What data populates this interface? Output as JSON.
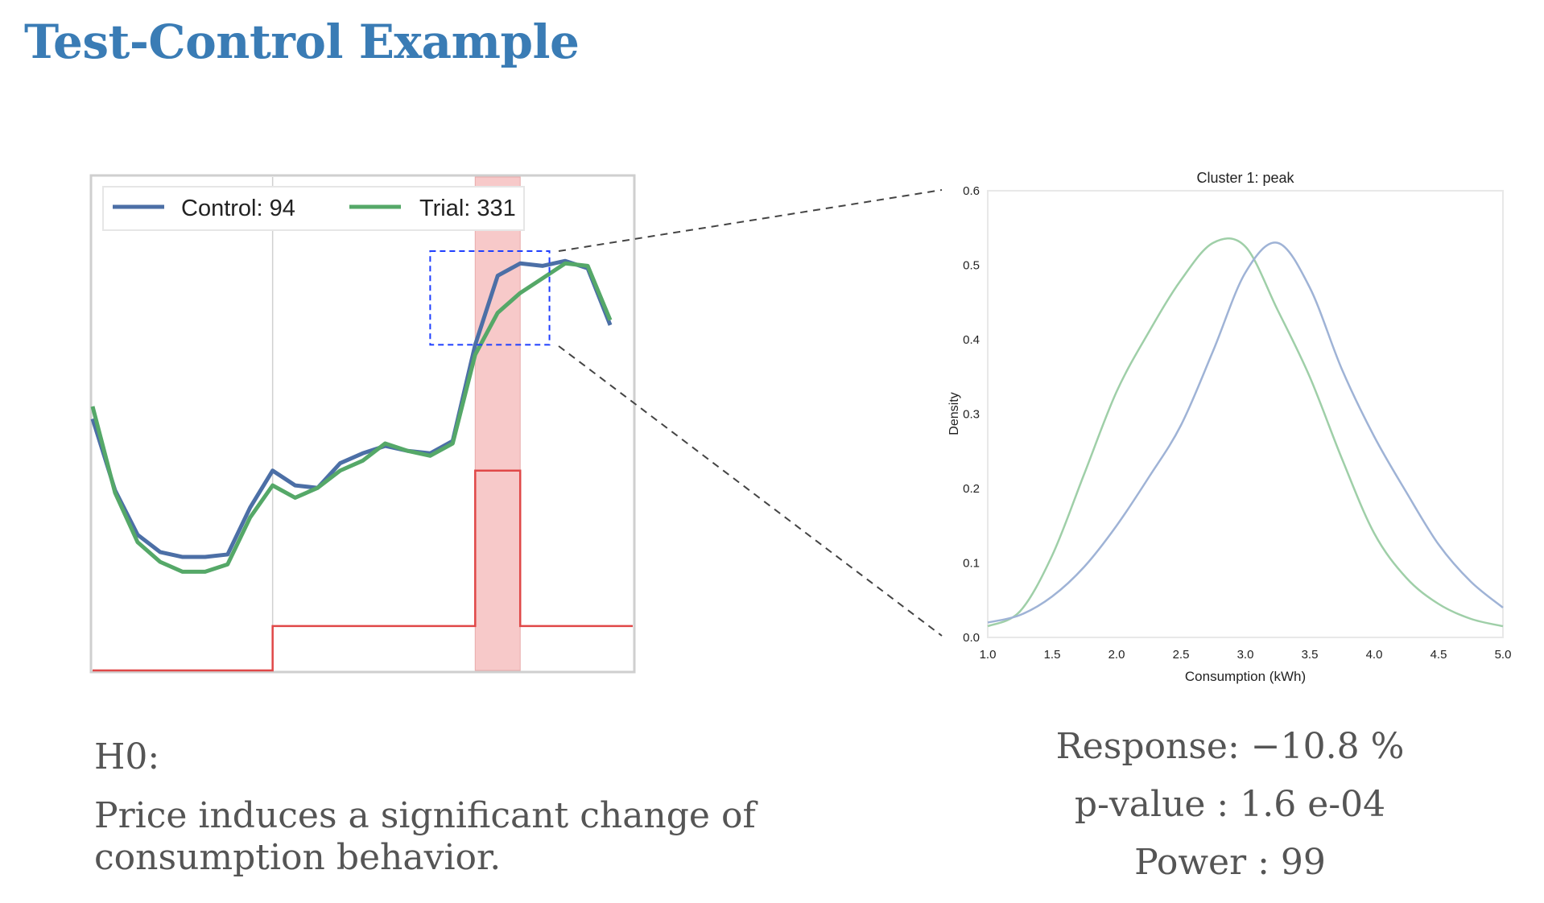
{
  "slide": {
    "title": "Test-Control Example",
    "hypothesis_label": "H0:",
    "hypothesis_text": "Price induces a significant change of consumption behavior.",
    "stats": {
      "response": "Response: −10.8 %",
      "pvalue": "p-value :  1.6 e-04",
      "power": "Power : 99"
    }
  },
  "colors": {
    "title": "#3a7cb5",
    "control": "#4c6fa6",
    "trial": "#55a868",
    "price": "#e04848",
    "peak_band": "#f7c9c9",
    "zoom_box": "#1f3fff"
  },
  "chart_data": [
    {
      "type": "line",
      "legend_placement": "top-left",
      "grid": false,
      "x": [
        0,
        1,
        2,
        3,
        4,
        5,
        6,
        7,
        8,
        9,
        10,
        11,
        12,
        13,
        14,
        15,
        16,
        17,
        18,
        19,
        20,
        21,
        22,
        23
      ],
      "ylim": [
        0,
        1
      ],
      "series": [
        {
          "name": "Control: 94",
          "values": [
            0.51,
            0.365,
            0.275,
            0.24,
            0.23,
            0.23,
            0.235,
            0.33,
            0.405,
            0.375,
            0.37,
            0.42,
            0.44,
            0.455,
            0.445,
            0.44,
            0.465,
            0.66,
            0.8,
            0.825,
            0.82,
            0.83,
            0.815,
            0.7
          ]
        },
        {
          "name": "Trial: 331",
          "values": [
            0.535,
            0.36,
            0.26,
            0.22,
            0.2,
            0.2,
            0.215,
            0.31,
            0.375,
            0.35,
            0.37,
            0.405,
            0.425,
            0.46,
            0.445,
            0.435,
            0.46,
            0.64,
            0.725,
            0.765,
            0.795,
            0.825,
            0.82,
            0.71
          ]
        }
      ],
      "price_signal": {
        "x": [
          0,
          8,
          8,
          17,
          17,
          19,
          19,
          24
        ],
        "values": [
          0,
          0,
          0.09,
          0.09,
          0.405,
          0.405,
          0.09,
          0.09
        ]
      },
      "peak_band": [
        17,
        19
      ],
      "zoom_box": {
        "x": [
          15,
          20.3
        ],
        "y": [
          0.66,
          0.85
        ]
      }
    },
    {
      "type": "line",
      "title": "Cluster 1: peak",
      "xlabel": "Consumption (kWh)",
      "ylabel": "Density",
      "xlim": [
        1.0,
        5.0
      ],
      "ylim": [
        0.0,
        0.6
      ],
      "xticks": [
        "1.0",
        "1.5",
        "2.0",
        "2.5",
        "3.0",
        "3.5",
        "4.0",
        "4.5",
        "5.0"
      ],
      "yticks": [
        "0.0",
        "0.1",
        "0.2",
        "0.3",
        "0.4",
        "0.5",
        "0.6"
      ],
      "series": [
        {
          "name": "",
          "x": [
            1.0,
            1.25,
            1.5,
            1.75,
            2.0,
            2.25,
            2.5,
            2.75,
            3.0,
            3.25,
            3.5,
            3.75,
            4.0,
            4.25,
            4.5,
            4.75,
            5.0
          ],
          "values": [
            0.015,
            0.035,
            0.11,
            0.22,
            0.33,
            0.41,
            0.48,
            0.53,
            0.525,
            0.44,
            0.35,
            0.24,
            0.14,
            0.08,
            0.045,
            0.025,
            0.015
          ]
        },
        {
          "name": "",
          "x": [
            1.0,
            1.25,
            1.5,
            1.75,
            2.0,
            2.25,
            2.5,
            2.75,
            3.0,
            3.25,
            3.5,
            3.75,
            4.0,
            4.25,
            4.5,
            4.75,
            5.0
          ],
          "values": [
            0.02,
            0.03,
            0.055,
            0.095,
            0.15,
            0.215,
            0.285,
            0.385,
            0.49,
            0.53,
            0.47,
            0.36,
            0.27,
            0.195,
            0.125,
            0.075,
            0.04
          ]
        }
      ]
    }
  ]
}
